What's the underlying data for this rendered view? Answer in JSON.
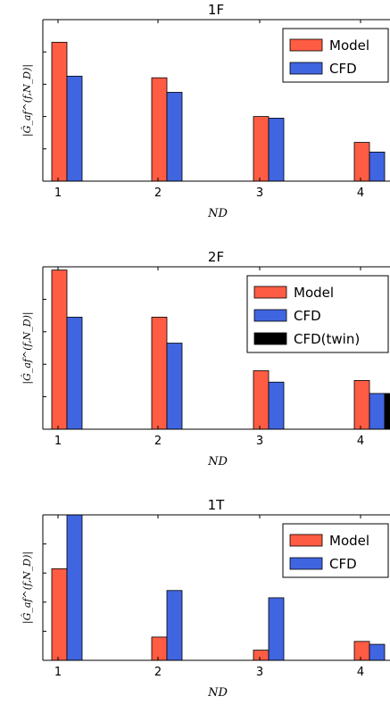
{
  "colors": {
    "model": "#fe5c43",
    "cfd": "#4065e1",
    "cfd_twin": "#000000",
    "axes": "#000000"
  },
  "chart_data": [
    {
      "type": "bar",
      "title": "1F",
      "xlabel": "ND",
      "ylabel": "|Ĝ_af^(f,N_D)|",
      "categories": [
        "1",
        "2",
        "3",
        "4"
      ],
      "ylim": [
        0,
        1
      ],
      "legend_position": "top-right",
      "series": [
        {
          "name": "Model",
          "values": [
            0.86,
            0.64,
            0.4,
            0.24
          ]
        },
        {
          "name": "CFD",
          "values": [
            0.65,
            0.55,
            0.39,
            0.18
          ]
        }
      ]
    },
    {
      "type": "bar",
      "title": "2F",
      "xlabel": "ND",
      "ylabel": "|Ĝ_af^(f,N_D)|",
      "categories": [
        "1",
        "2",
        "3",
        "4"
      ],
      "ylim": [
        0,
        1
      ],
      "legend_position": "top-right",
      "series": [
        {
          "name": "Model",
          "values": [
            0.98,
            0.69,
            0.36,
            0.3
          ]
        },
        {
          "name": "CFD",
          "values": [
            0.69,
            0.53,
            0.29,
            0.22
          ]
        },
        {
          "name": "CFD(twin)",
          "values": [
            null,
            null,
            null,
            0.22
          ]
        }
      ]
    },
    {
      "type": "bar",
      "title": "1T",
      "xlabel": "ND",
      "ylabel": "|Ĝ_af^(f,N_D)|",
      "categories": [
        "1",
        "2",
        "3",
        "4"
      ],
      "ylim": [
        0,
        1
      ],
      "legend_position": "top-right",
      "series": [
        {
          "name": "Model",
          "values": [
            0.63,
            0.16,
            0.07,
            0.13
          ]
        },
        {
          "name": "CFD",
          "values": [
            1.0,
            0.48,
            0.43,
            0.11
          ]
        }
      ]
    }
  ]
}
